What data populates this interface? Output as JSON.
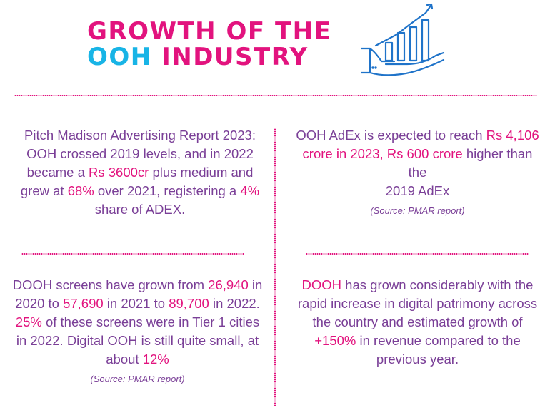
{
  "title": {
    "line1": "GROWTH OF THE",
    "line2_a": "OOH",
    "line2_b": " INDUSTRY"
  },
  "colors": {
    "accent": "#e2137e",
    "cyan": "#18b4e6",
    "text": "#7a3f97",
    "icon": "#1f73c9"
  },
  "logo": {
    "icon": "hand-holding-growth-chart-icon"
  },
  "blocks": {
    "top_left": {
      "t1": "Pitch Madison Advertising Report 2023: OOH crossed 2019 levels, and in 2022 became a ",
      "h1": "Rs 3600cr",
      "t2": " plus medium and grew at ",
      "h2": "68%",
      "t3": " over 2021, registering a ",
      "h3": "4%",
      "t4": " share of ADEX."
    },
    "top_right": {
      "t1": "OOH AdEx is expected to reach ",
      "h1": "Rs 4,106 crore in 2023, Rs 600 crore",
      "t2": " higher than the",
      "t3": "2019 AdEx",
      "source": "(Source: PMAR report)"
    },
    "bottom_left": {
      "t1": "DOOH screens have grown from ",
      "h1": "26,940",
      "t2": " in 2020 to ",
      "h2": "57,690",
      "t3": " in 2021 to ",
      "h3": "89,700",
      "t4": " in 2022. ",
      "h4": "25%",
      "t5": " of these screens were in Tier 1 cities in 2022. Digital OOH is still quite small, at about ",
      "h5": "12%",
      "source": "(Source: PMAR report)"
    },
    "bottom_right": {
      "h1": "DOOH",
      "t1": " has grown considerably with the rapid increase in digital patrimony across the country and estimated growth of ",
      "h2": "+150%",
      "t2": " in revenue compared to the previous year."
    }
  }
}
